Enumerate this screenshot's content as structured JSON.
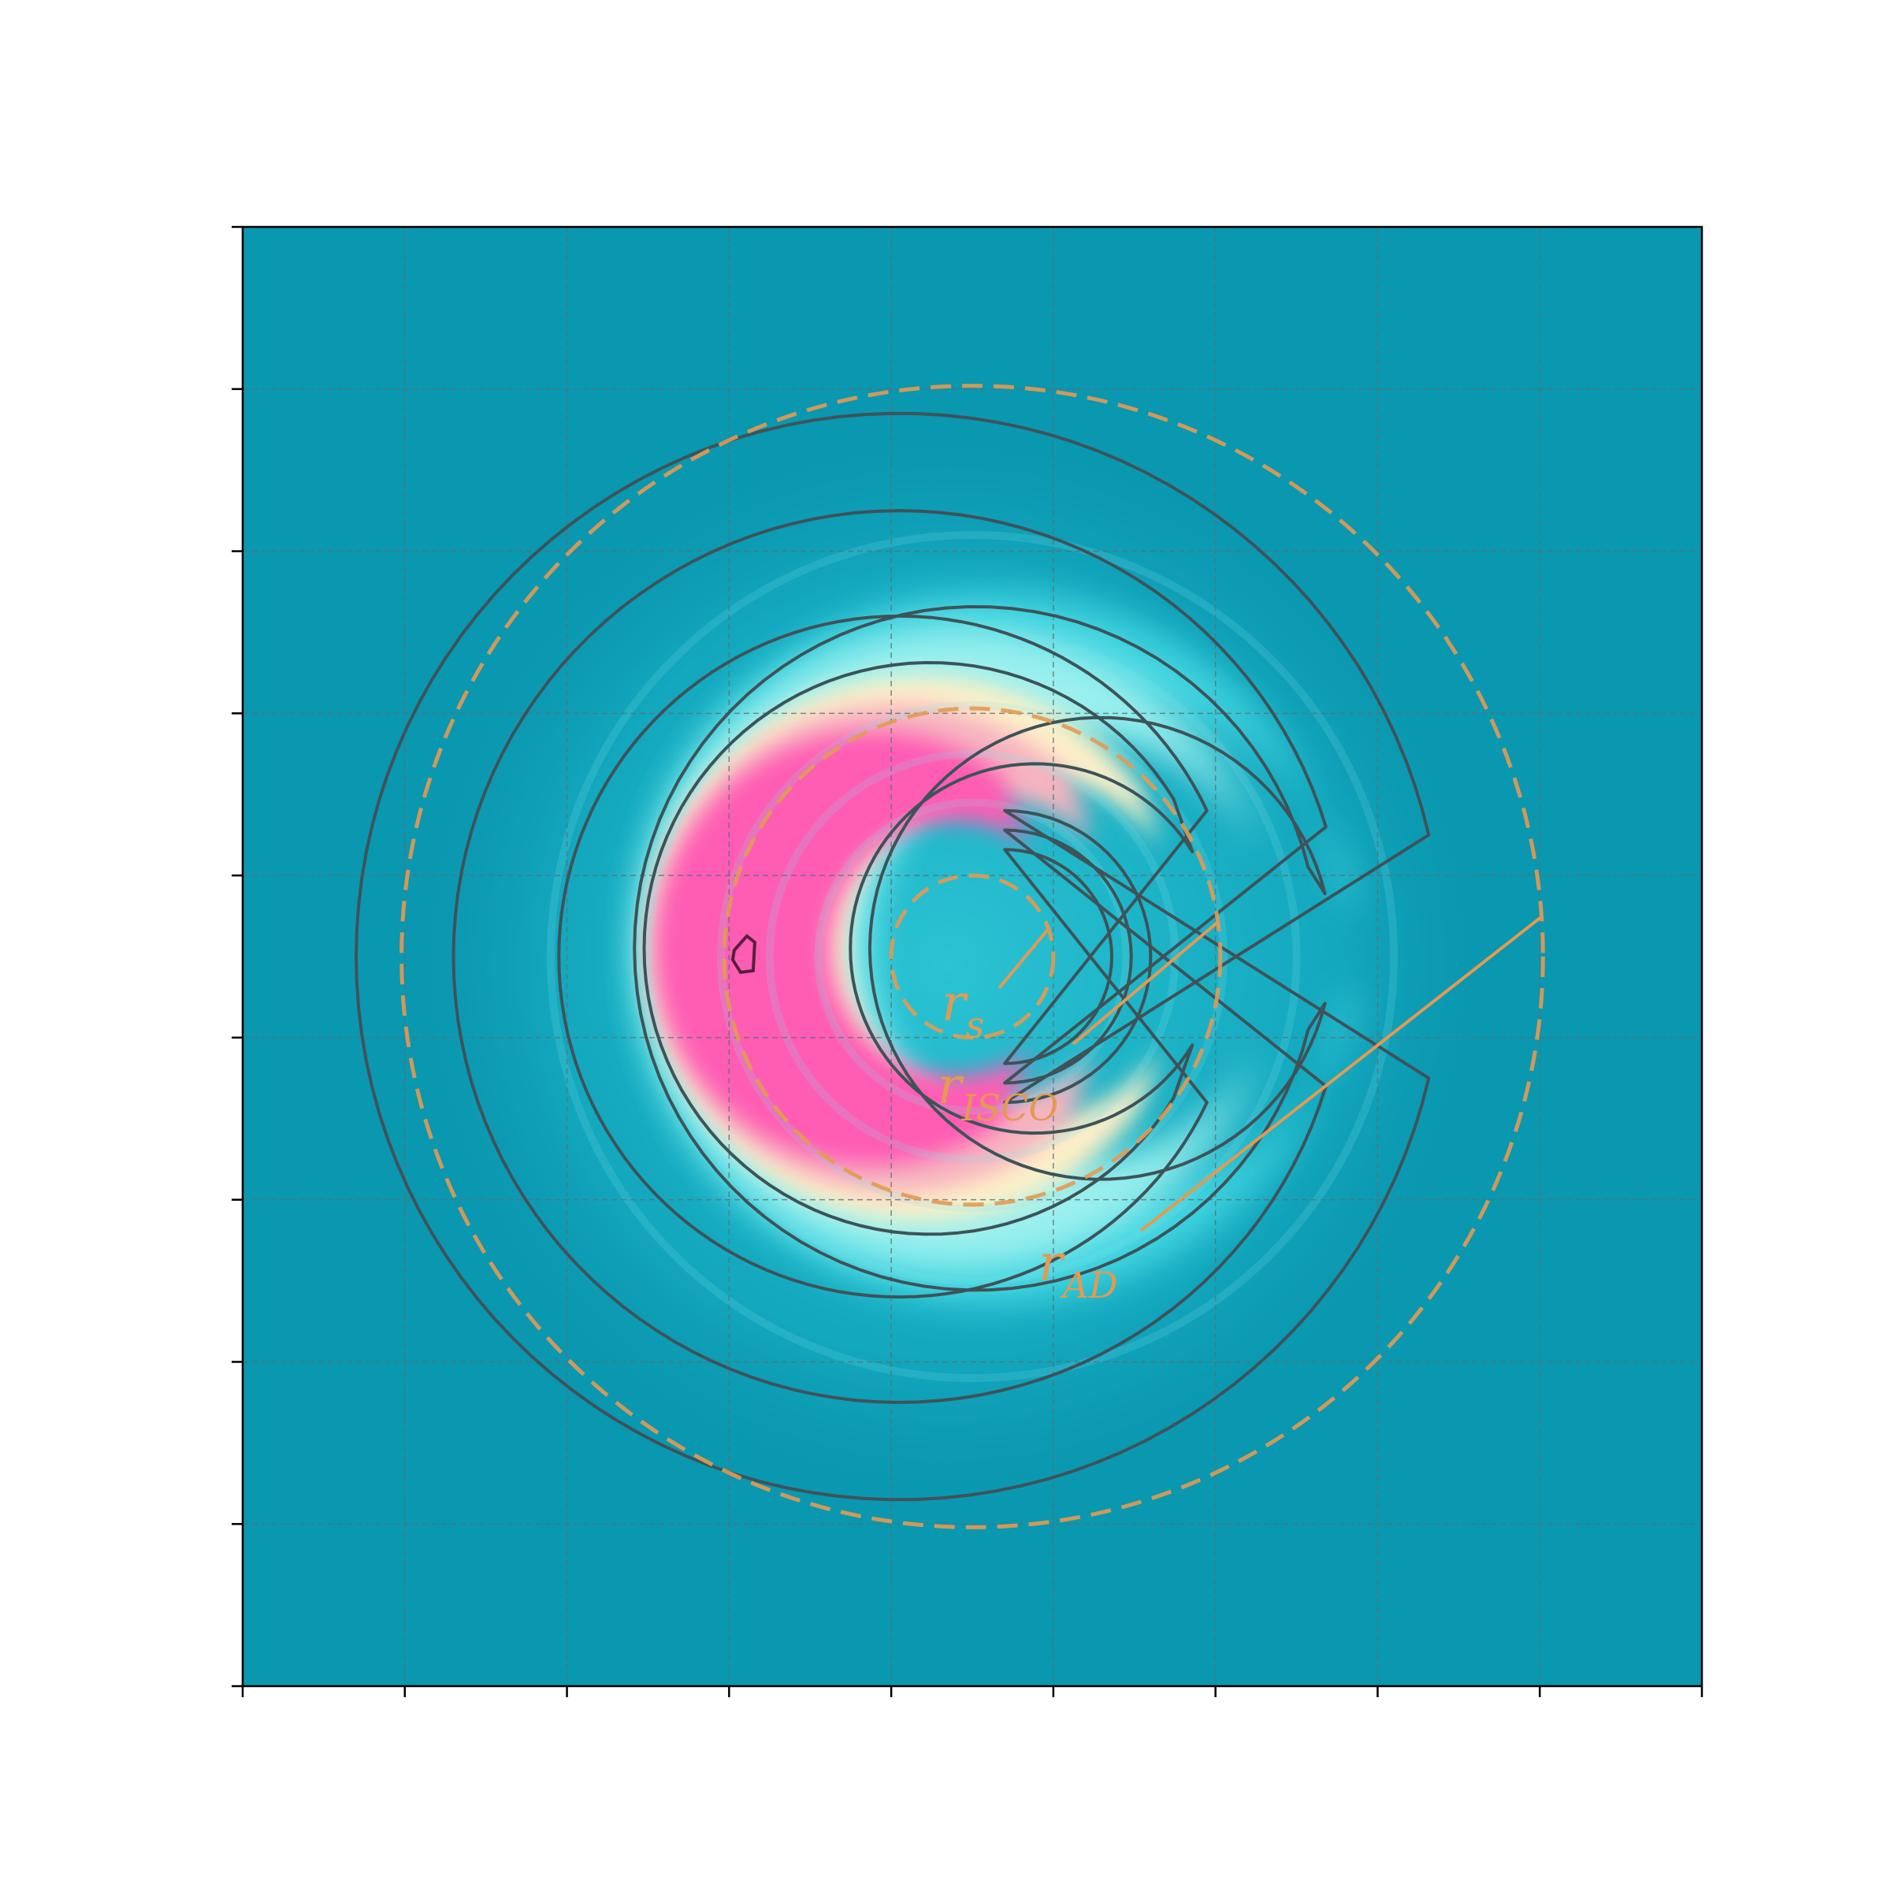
{
  "chart_data": {
    "type": "heatmap",
    "title": "",
    "xlabel": "",
    "ylabel": "",
    "xlim": [
      0,
      9
    ],
    "ylim": [
      0,
      9
    ],
    "x_ticks": [
      0,
      1,
      2,
      3,
      4,
      5,
      6,
      7,
      8,
      9
    ],
    "y_ticks": [
      0,
      1,
      2,
      3,
      4,
      5,
      6,
      7,
      8,
      9
    ],
    "tick_labels_visible": false,
    "grid": true,
    "colormap": [
      "#0a97b0",
      "#3fd4e0",
      "#9af0ee",
      "#fdf0c8",
      "#f7b4c0",
      "#ff5cb4"
    ],
    "center": [
      4.5,
      4.5
    ],
    "circles": [
      {
        "id": "r_s",
        "radius": 0.5,
        "label": "r",
        "subscript": "s"
      },
      {
        "id": "r_isco",
        "radius": 1.53,
        "label": "r",
        "subscript": "ISCO"
      },
      {
        "id": "r_ad",
        "radius": 3.52,
        "label": "r",
        "subscript": "AD"
      }
    ],
    "crescent_peak": [
      3.1,
      4.5
    ],
    "contour_levels": 6,
    "colors": {
      "background": "#0a97b0",
      "circles": "#e39a52",
      "contours": "#3d5358",
      "contour_peak": "#5a1f3d",
      "grid": "#5b6f74"
    }
  }
}
